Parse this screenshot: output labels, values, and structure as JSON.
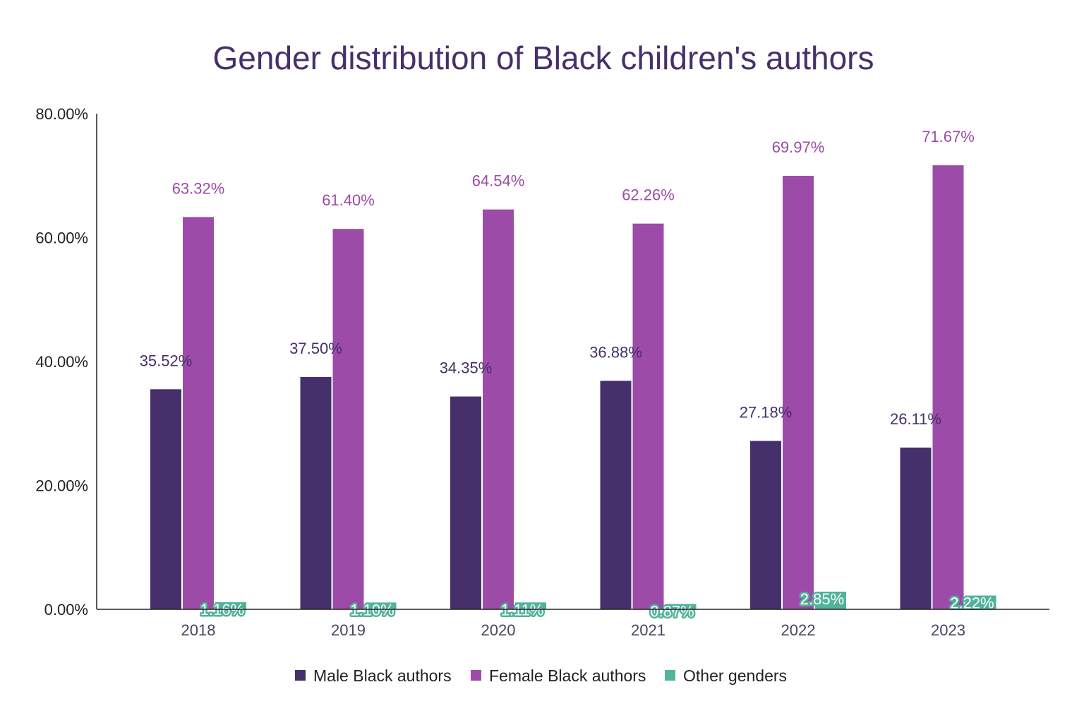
{
  "chart_data": {
    "type": "bar",
    "title": "Gender distribution of Black children's authors",
    "xlabel": "",
    "ylabel": "",
    "categories": [
      "2018",
      "2019",
      "2020",
      "2021",
      "2022",
      "2023"
    ],
    "ylim": [
      0,
      80
    ],
    "yticks": [
      "0.00%",
      "20.00%",
      "40.00%",
      "60.00%",
      "80.00%"
    ],
    "grid": false,
    "legend_position": "bottom",
    "series": [
      {
        "name": "Male Black authors",
        "color": "#45306b",
        "values": [
          35.52,
          37.5,
          34.35,
          36.88,
          27.18,
          26.11
        ],
        "labels": [
          "35.52%",
          "37.50%",
          "34.35%",
          "36.88%",
          "27.18%",
          "26.11%"
        ]
      },
      {
        "name": "Female Black authors",
        "color": "#9c4ca8",
        "values": [
          63.32,
          61.4,
          64.54,
          62.26,
          69.97,
          71.67
        ],
        "labels": [
          "63.32%",
          "61.40%",
          "64.54%",
          "62.26%",
          "69.97%",
          "71.67%"
        ]
      },
      {
        "name": "Other genders",
        "color": "#52b39a",
        "values": [
          1.16,
          1.1,
          1.11,
          0.87,
          2.85,
          2.22
        ],
        "labels": [
          "1.16%",
          "1.10%",
          "1.11%",
          "0.87%",
          "2.85%",
          "2.22%"
        ]
      }
    ]
  }
}
